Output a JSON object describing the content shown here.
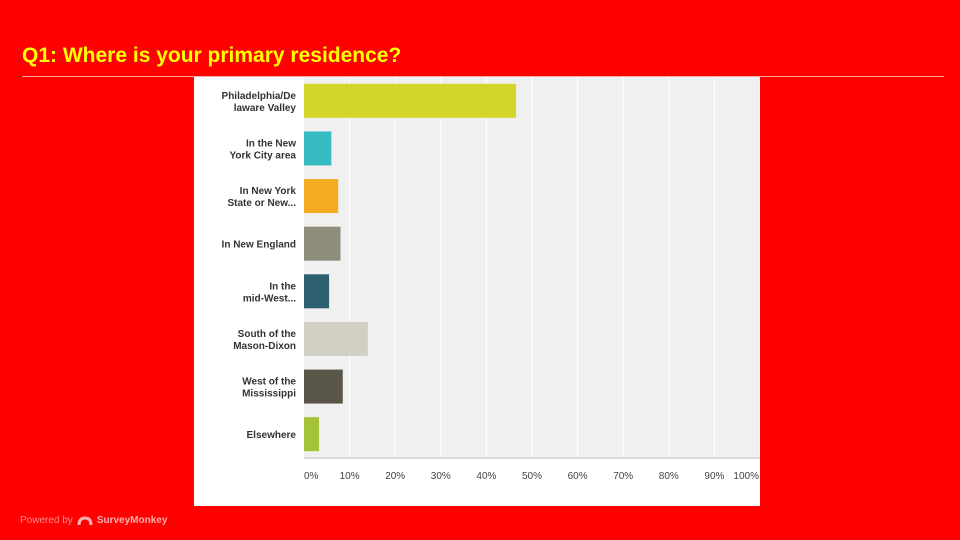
{
  "slide": {
    "title": "Q1: Where is your primary residence?",
    "footer_powered_by": "Powered by",
    "footer_logo_text": "SurveyMonkey"
  },
  "chart_data": {
    "type": "bar",
    "orientation": "horizontal",
    "title": "",
    "xlabel": "",
    "ylabel": "",
    "xlim": [
      0,
      100
    ],
    "grid": true,
    "legend": "none",
    "tick_labels": [
      "0%",
      "10%",
      "20%",
      "30%",
      "40%",
      "50%",
      "60%",
      "70%",
      "80%",
      "90%",
      "100%"
    ],
    "categories": [
      [
        "Philadelphia/De",
        "laware Valley"
      ],
      [
        "In the New",
        "York City area"
      ],
      [
        "In New York",
        "State or New..."
      ],
      [
        "In New England"
      ],
      [
        "In the",
        "mid-West..."
      ],
      [
        "South of the",
        "Mason-Dixon"
      ],
      [
        "West of the",
        "Mississippi"
      ],
      [
        "Elsewhere"
      ]
    ],
    "values": [
      46.5,
      6,
      7.5,
      8,
      5.5,
      14,
      8.5,
      3.3
    ],
    "colors": [
      "#d2d62b",
      "#36bcc2",
      "#f5ac22",
      "#8e8d7c",
      "#2c6070",
      "#d2d0c2",
      "#5b5748",
      "#a4c23a"
    ]
  }
}
